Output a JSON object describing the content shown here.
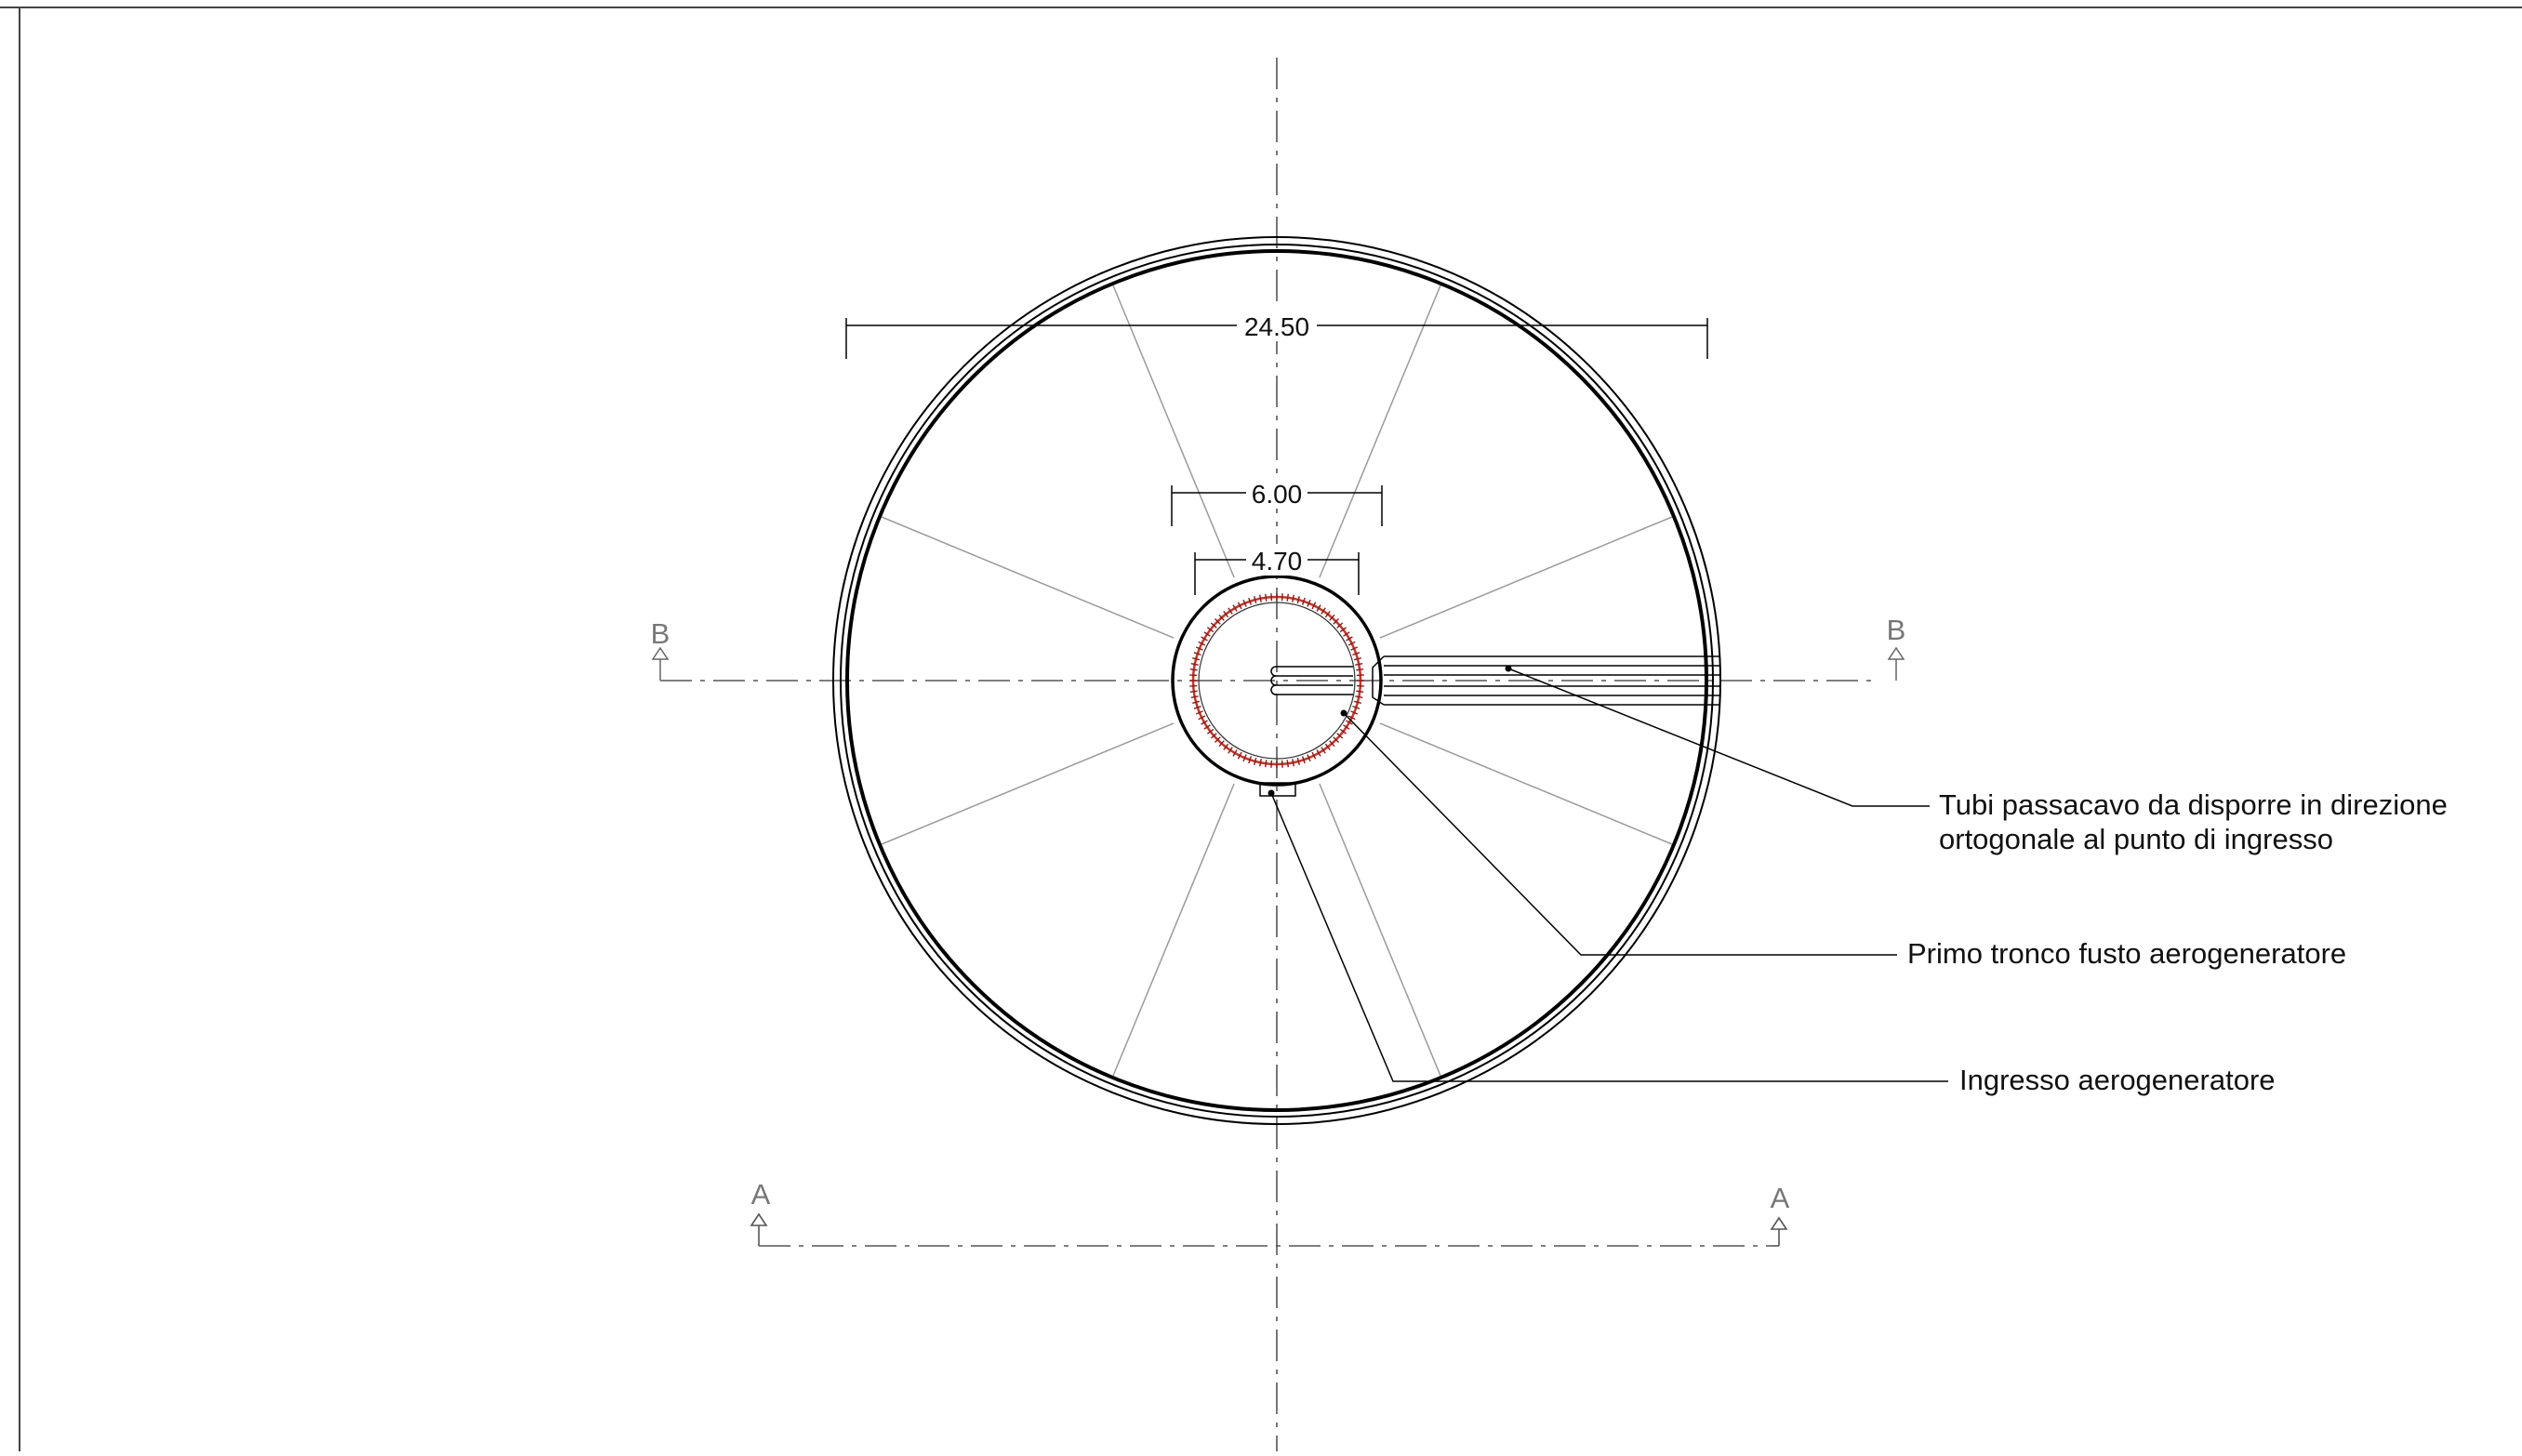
{
  "drawing": {
    "dimensions": {
      "outer_diameter": "24.50",
      "pedestal_diameter": "6.00",
      "tower_diameter": "4.70"
    },
    "section_marks": {
      "b_left": "B",
      "b_right": "B",
      "a_left": "A",
      "a_right": "A"
    },
    "callouts": {
      "cable_pipes_line1": "Tubi passacavo da disporre in direzione",
      "cable_pipes_line2": "ortogonale al punto di ingresso",
      "tower_section": "Primo tronco fusto aerogeneratore",
      "entrance": "Ingresso aerogeneratore"
    },
    "colors": {
      "line": "#000000",
      "thin_line": "#8c8c8c",
      "anchor_bolts": "#c0392b",
      "section_marks": "#777777"
    }
  }
}
